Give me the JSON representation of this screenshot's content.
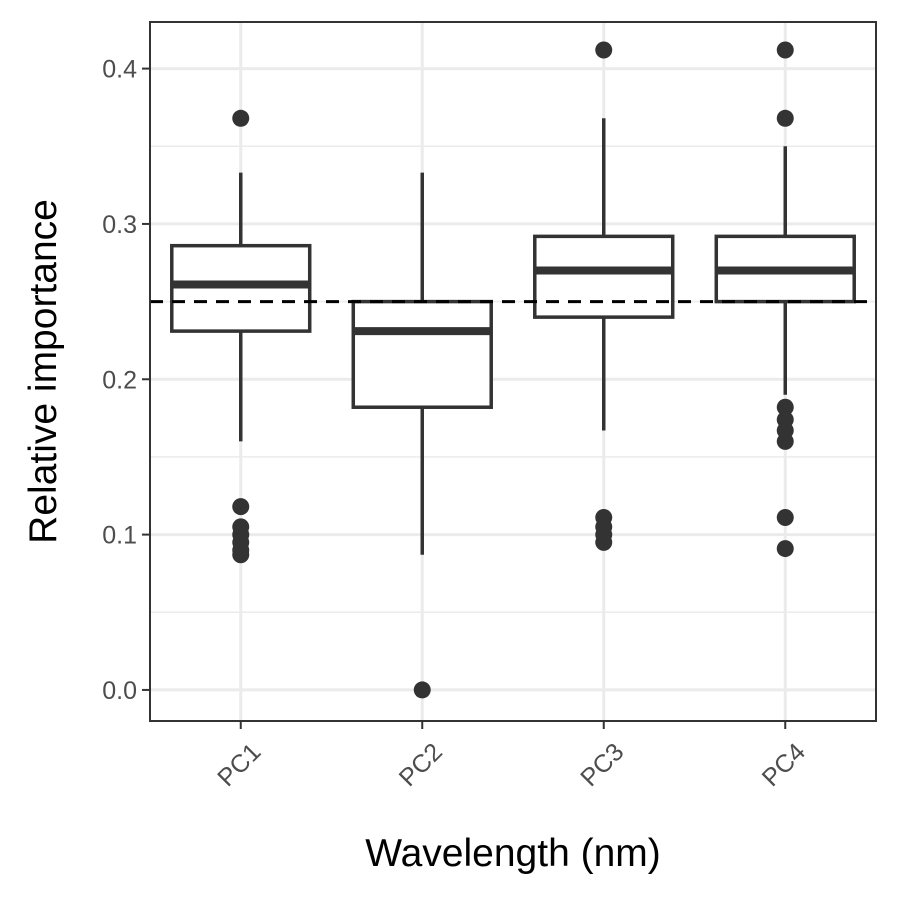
{
  "chart_data": {
    "type": "box",
    "xlabel": "Wavelength (nm)",
    "ylabel": "Relative importance",
    "ylim": [
      -0.02,
      0.43
    ],
    "yticks": [
      0.0,
      0.1,
      0.2,
      0.3,
      0.4
    ],
    "ytick_labels": [
      "0.0",
      "0.1",
      "0.2",
      "0.3",
      "0.4"
    ],
    "categories": [
      "PC1",
      "PC2",
      "PC3",
      "PC4"
    ],
    "grid": true,
    "reference_line": {
      "y": 0.25,
      "style": "dashed"
    },
    "boxes": [
      {
        "category": "PC1",
        "whisker_low": 0.16,
        "q1": 0.231,
        "median": 0.261,
        "q3": 0.286,
        "whisker_high": 0.333,
        "outliers": [
          0.368,
          0.118,
          0.105,
          0.1,
          0.095,
          0.09,
          0.087
        ]
      },
      {
        "category": "PC2",
        "whisker_low": 0.087,
        "q1": 0.182,
        "median": 0.231,
        "q3": 0.25,
        "whisker_high": 0.333,
        "outliers": [
          0.0
        ]
      },
      {
        "category": "PC3",
        "whisker_low": 0.167,
        "q1": 0.24,
        "median": 0.27,
        "q3": 0.292,
        "whisker_high": 0.368,
        "outliers": [
          0.412,
          0.111,
          0.105,
          0.1,
          0.095
        ]
      },
      {
        "category": "PC4",
        "whisker_low": 0.19,
        "q1": 0.25,
        "median": 0.27,
        "q3": 0.292,
        "whisker_high": 0.35,
        "outliers": [
          0.412,
          0.368,
          0.182,
          0.174,
          0.167,
          0.16,
          0.111,
          0.091
        ]
      }
    ],
    "colors": {
      "box": "#333333",
      "grid": "#ebebeb",
      "border": "#333333"
    }
  }
}
